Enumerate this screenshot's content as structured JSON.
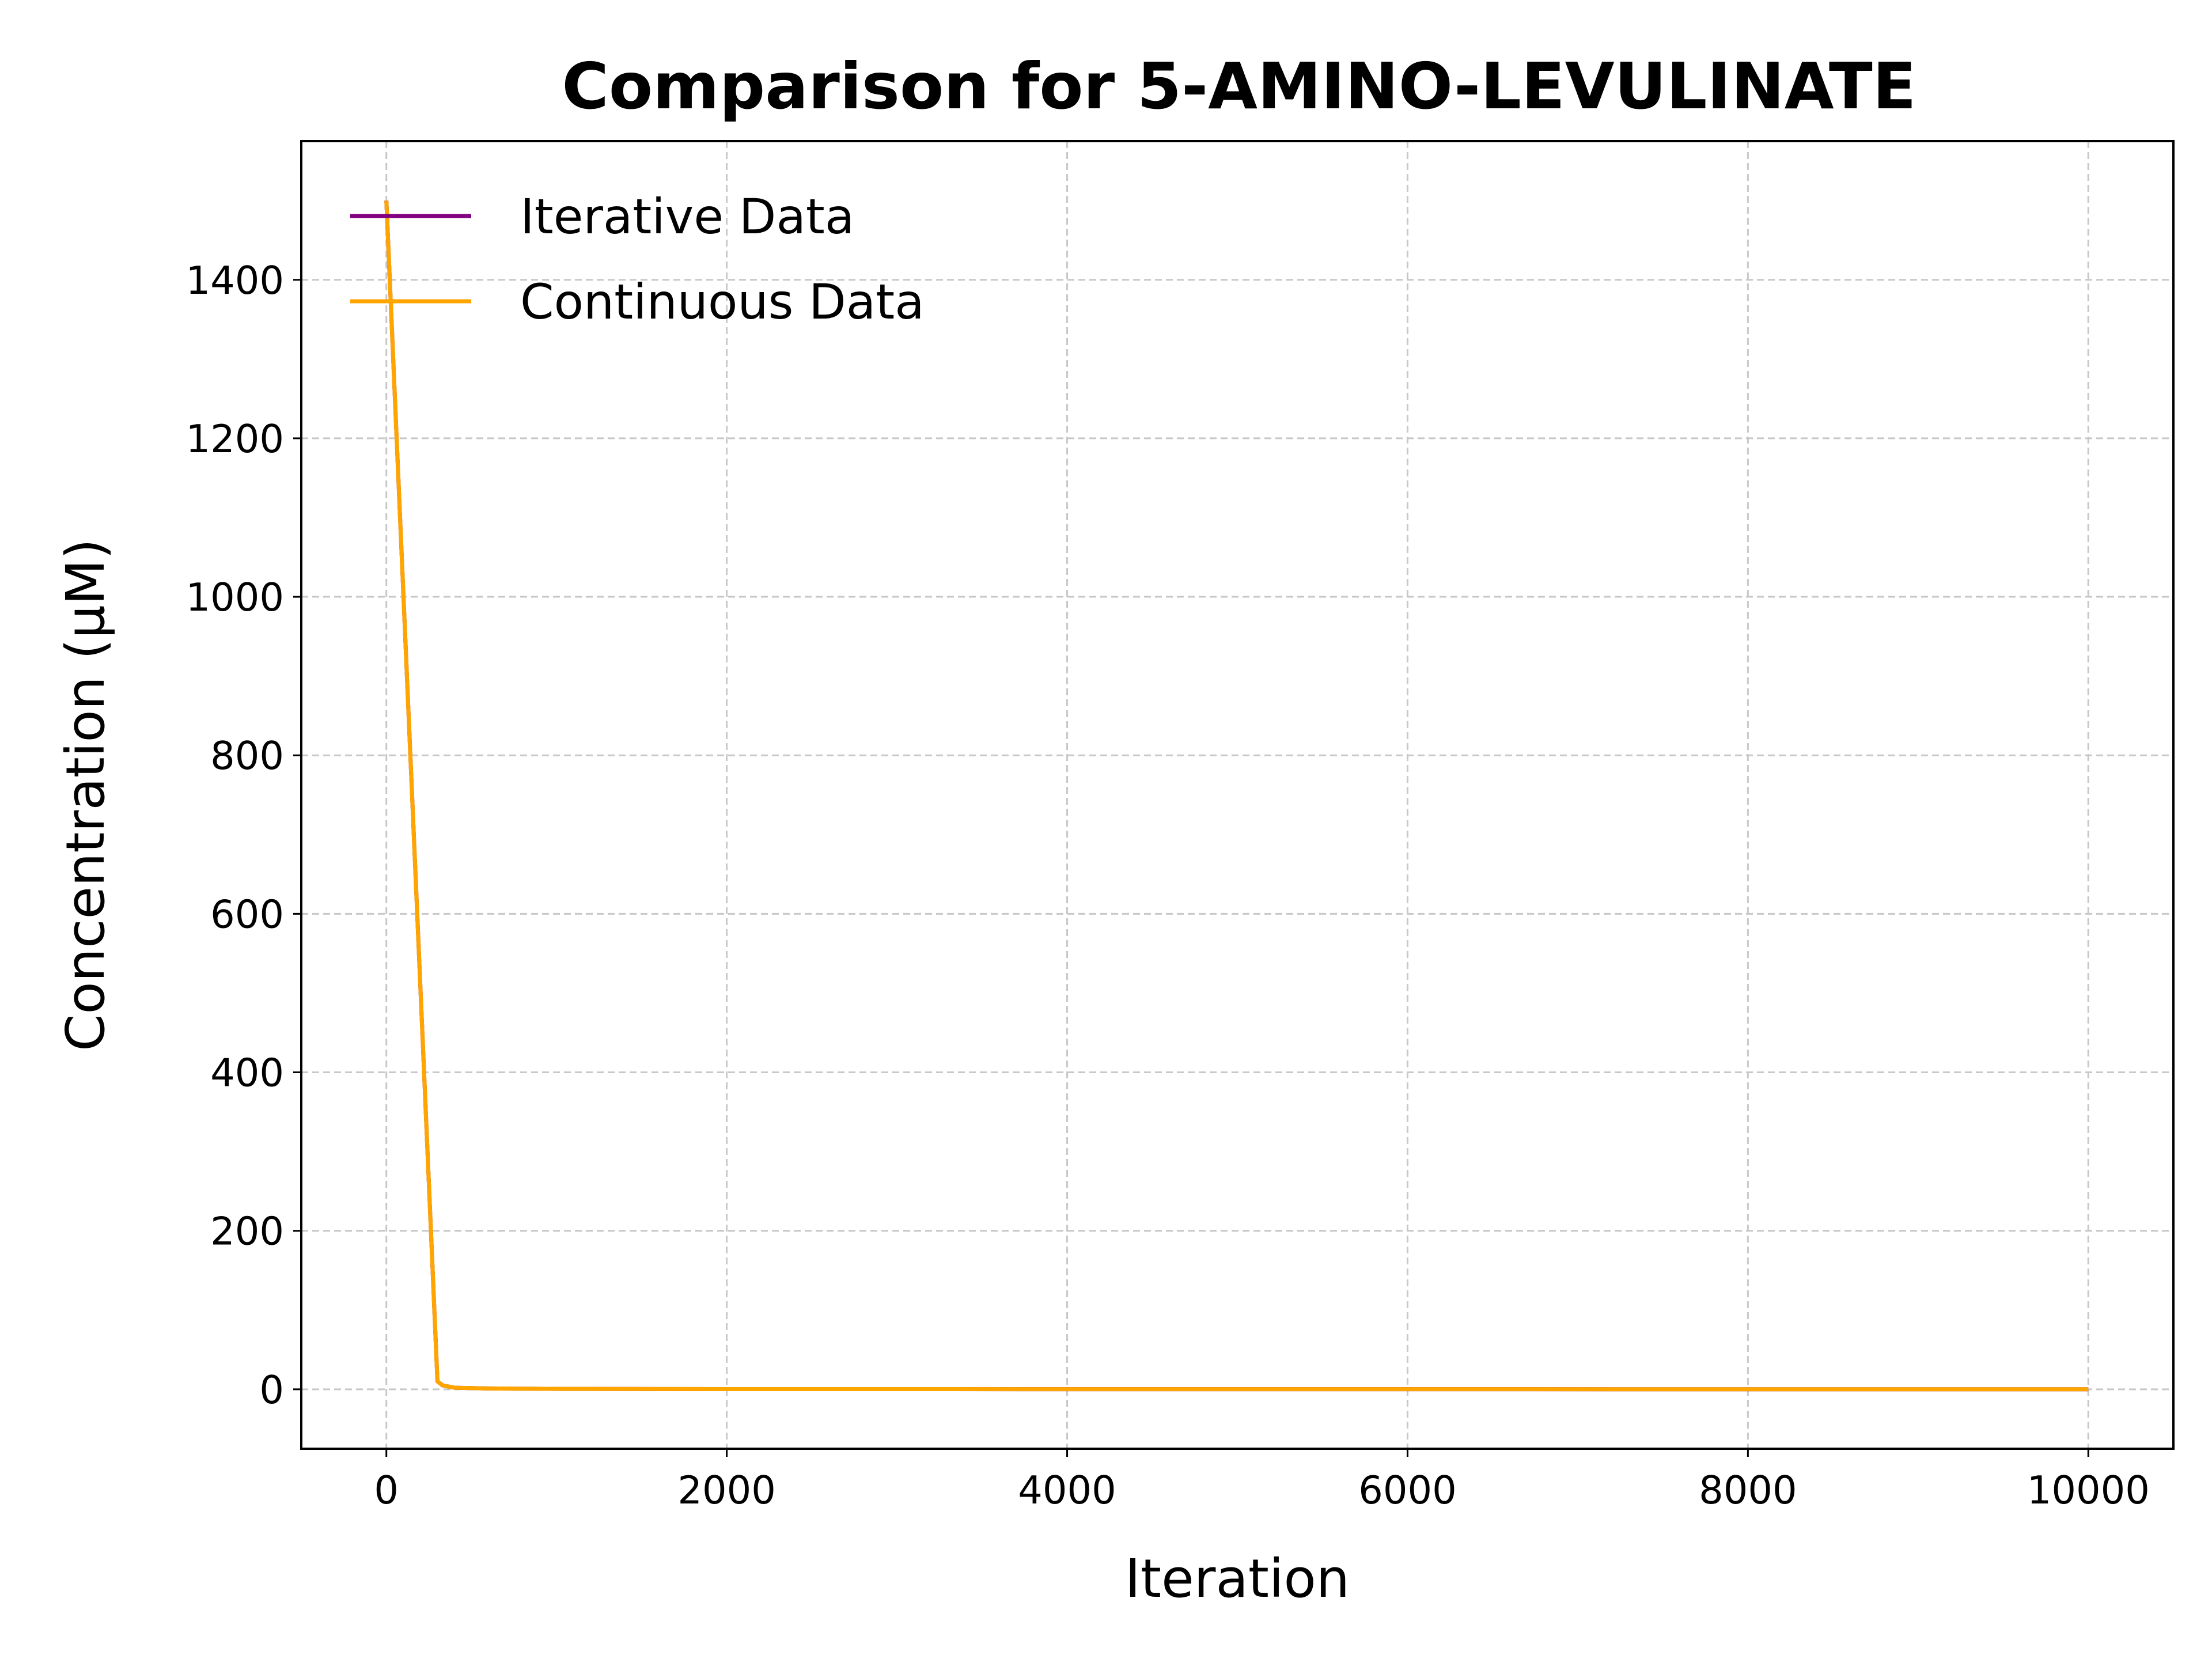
{
  "chart_data": {
    "type": "line",
    "title": "Comparison for 5-AMINO-LEVULINATE",
    "xlabel": "Iteration",
    "ylabel": "Concentration (μM)",
    "xlim": [
      -500,
      10500
    ],
    "ylim": [
      -75,
      1575
    ],
    "xticks": [
      0,
      2000,
      4000,
      6000,
      8000,
      10000
    ],
    "xtick_labels": [
      "0",
      "2000",
      "4000",
      "6000",
      "8000",
      "10000"
    ],
    "yticks": [
      0,
      200,
      400,
      600,
      800,
      1000,
      1200,
      1400
    ],
    "ytick_labels": [
      "0",
      "200",
      "400",
      "600",
      "800",
      "1000",
      "1200",
      "1400"
    ],
    "grid": true,
    "legend_position": "top-left",
    "series": [
      {
        "name": "Iterative Data",
        "color": "#800080",
        "x": [
          0,
          300,
          330,
          400,
          600,
          1000,
          2000,
          10000
        ],
        "y": [
          1500,
          10,
          5,
          2,
          1,
          0.5,
          0.2,
          0
        ]
      },
      {
        "name": "Continuous Data",
        "color": "#FFA500",
        "x": [
          0,
          300,
          330,
          400,
          600,
          1000,
          2000,
          10000
        ],
        "y": [
          1500,
          10,
          5,
          2,
          1,
          0.5,
          0.2,
          0
        ]
      }
    ]
  }
}
